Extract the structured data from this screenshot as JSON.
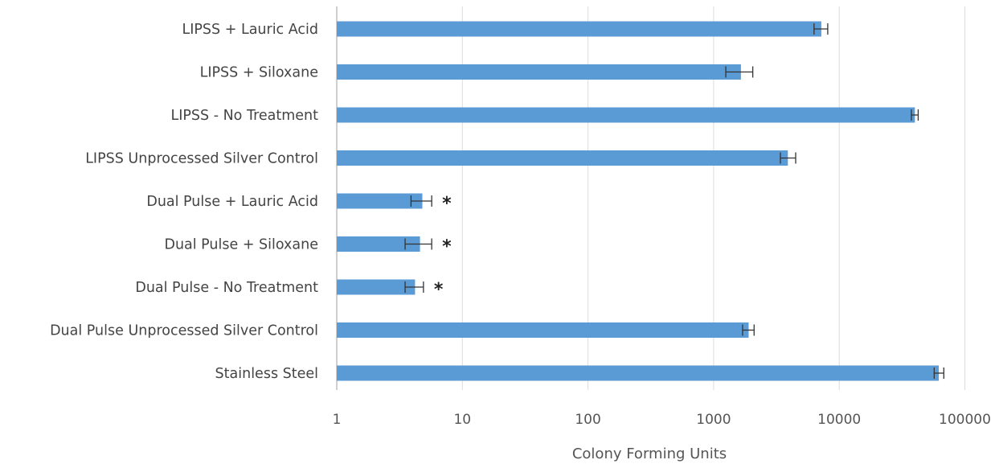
{
  "chart_data": {
    "type": "bar",
    "orientation": "horizontal",
    "x_scale": "log",
    "xlabel": "Colony Forming Units",
    "ylabel": "",
    "title": "",
    "xlim": [
      1,
      100000
    ],
    "x_ticks": [
      "1",
      "10",
      "100",
      "1000",
      "10000",
      "100000"
    ],
    "grid": "vertical",
    "bar_color": "#5b9bd5",
    "categories": [
      "LIPSS + Lauric Acid",
      "LIPSS + Siloxane",
      "LIPSS - No Treatment",
      "LIPSS Unprocessed Silver Control",
      "Dual Pulse + Lauric Acid",
      "Dual Pulse + Siloxane",
      "Dual Pulse - No Treatment",
      "Dual Pulse Unprocessed Silver Control",
      "Stainless Steel"
    ],
    "values": [
      7200,
      1650,
      40000,
      3900,
      4.8,
      4.6,
      4.2,
      1900,
      62000
    ],
    "error_low": [
      6300,
      1250,
      37500,
      3400,
      3.9,
      3.5,
      3.5,
      1700,
      57000
    ],
    "error_high": [
      8100,
      2050,
      42500,
      4500,
      5.7,
      5.7,
      4.9,
      2100,
      68000
    ],
    "significance": [
      "",
      "",
      "",
      "",
      "*",
      "*",
      "*",
      "",
      ""
    ]
  }
}
